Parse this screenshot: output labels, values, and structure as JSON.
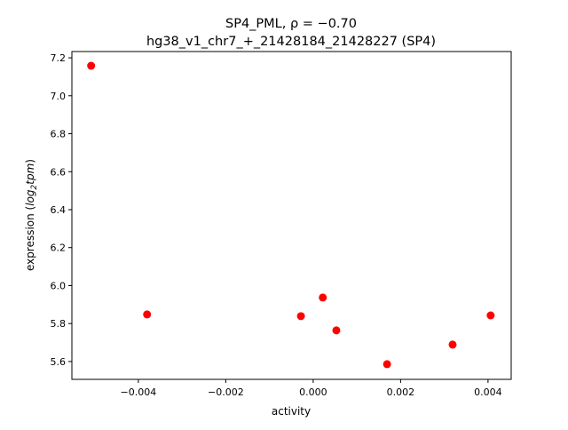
{
  "chart_data": {
    "type": "scatter",
    "title_line1": "SP4_PML, ρ = −0.70",
    "title_line2": "hg38_v1_chr7_+_21428184_21428227 (SP4)",
    "xlabel": "activity",
    "ylabel_prefix": "expression (",
    "ylabel_math": "log",
    "ylabel_sub": "2",
    "ylabel_math2": "tpm",
    "ylabel_suffix": ")",
    "xlim": [
      -0.00552,
      0.00453
    ],
    "ylim": [
      5.506,
      7.233
    ],
    "xticks": [
      -0.004,
      -0.002,
      0.0,
      0.002,
      0.004
    ],
    "xtick_labels": [
      "−0.004",
      "−0.002",
      "0.000",
      "0.002",
      "0.004"
    ],
    "yticks": [
      5.6,
      5.8,
      6.0,
      6.2,
      6.4,
      6.6,
      6.8,
      7.0,
      7.2
    ],
    "ytick_labels": [
      "5.6",
      "5.8",
      "6.0",
      "6.2",
      "6.4",
      "6.6",
      "6.8",
      "7.0",
      "7.2"
    ],
    "grid": false,
    "marker_color": "#ff0000",
    "points": [
      {
        "x": -0.00508,
        "y": 7.158
      },
      {
        "x": -0.0038,
        "y": 5.848
      },
      {
        "x": -0.00028,
        "y": 5.839
      },
      {
        "x": 0.00022,
        "y": 5.937
      },
      {
        "x": 0.00053,
        "y": 5.764
      },
      {
        "x": 0.00169,
        "y": 5.586
      },
      {
        "x": 0.00319,
        "y": 5.689
      },
      {
        "x": 0.00406,
        "y": 5.843
      }
    ]
  }
}
